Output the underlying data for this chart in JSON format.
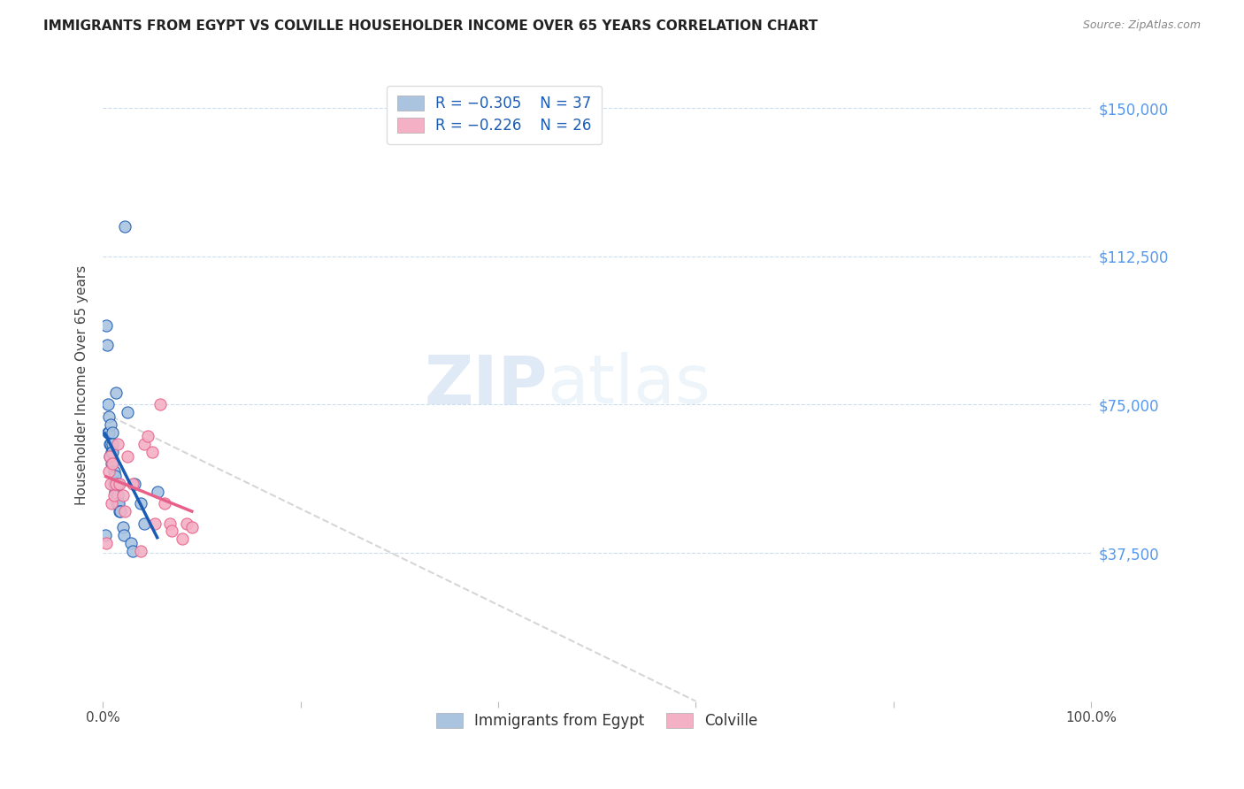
{
  "title": "IMMIGRANTS FROM EGYPT VS COLVILLE HOUSEHOLDER INCOME OVER 65 YEARS CORRELATION CHART",
  "source": "Source: ZipAtlas.com",
  "ylabel": "Householder Income Over 65 years",
  "y_ticks": [
    37500,
    75000,
    112500,
    150000
  ],
  "y_tick_labels": [
    "$37,500",
    "$75,000",
    "$112,500",
    "$150,000"
  ],
  "legend_r1": "R = -0.305",
  "legend_n1": "N = 37",
  "legend_r2": "R = -0.226",
  "legend_n2": "N = 26",
  "legend_label1": "Immigrants from Egypt",
  "legend_label2": "Colville",
  "color_egypt": "#aac4e0",
  "color_colville": "#f4b0c5",
  "color_line_egypt": "#1a5cb5",
  "color_line_colville": "#e8608a",
  "color_dashed": "#cccccc",
  "watermark_zip": "ZIP",
  "watermark_atlas": "atlas",
  "egypt_x": [
    0.002,
    0.003,
    0.004,
    0.005,
    0.005,
    0.006,
    0.006,
    0.007,
    0.007,
    0.008,
    0.008,
    0.009,
    0.009,
    0.01,
    0.01,
    0.01,
    0.011,
    0.011,
    0.012,
    0.012,
    0.013,
    0.014,
    0.015,
    0.015,
    0.016,
    0.017,
    0.018,
    0.02,
    0.021,
    0.022,
    0.025,
    0.028,
    0.03,
    0.032,
    0.038,
    0.042,
    0.055
  ],
  "egypt_y": [
    42000,
    95000,
    90000,
    68000,
    75000,
    72000,
    68000,
    65000,
    62000,
    70000,
    65000,
    63000,
    60000,
    68000,
    65000,
    63000,
    58000,
    55000,
    57000,
    53000,
    78000,
    50000,
    55000,
    52000,
    50000,
    48000,
    48000,
    44000,
    42000,
    120000,
    73000,
    40000,
    38000,
    55000,
    50000,
    45000,
    53000
  ],
  "colville_x": [
    0.003,
    0.006,
    0.007,
    0.008,
    0.009,
    0.01,
    0.011,
    0.013,
    0.015,
    0.017,
    0.02,
    0.022,
    0.025,
    0.03,
    0.038,
    0.042,
    0.045,
    0.05,
    0.053,
    0.058,
    0.062,
    0.068,
    0.07,
    0.08,
    0.085,
    0.09
  ],
  "colville_y": [
    40000,
    58000,
    62000,
    55000,
    50000,
    60000,
    52000,
    55000,
    65000,
    55000,
    52000,
    48000,
    62000,
    55000,
    38000,
    65000,
    67000,
    63000,
    45000,
    75000,
    50000,
    45000,
    43000,
    41000,
    45000,
    44000
  ],
  "xlim": [
    0.0,
    1.0
  ],
  "ylim": [
    0,
    160000
  ],
  "figsize": [
    14.06,
    8.92
  ],
  "dpi": 100
}
